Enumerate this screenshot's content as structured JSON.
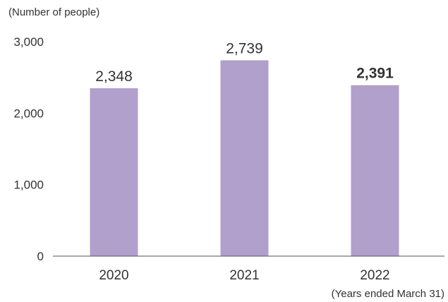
{
  "chart_data": {
    "type": "bar",
    "unit_label": "(Number of people)",
    "x_note": "(Years ended March 31)",
    "categories": [
      "2020",
      "2021",
      "2022"
    ],
    "values": [
      2348,
      2739,
      2391
    ],
    "value_labels": [
      "2,348",
      "2,739",
      "2,391"
    ],
    "highlight_index": 2,
    "yticks": [
      0,
      1000,
      2000,
      3000
    ],
    "ytick_labels": [
      "0",
      "1,000",
      "2,000",
      "3,000"
    ],
    "ylim": [
      0,
      3000
    ],
    "grid": false,
    "colors": {
      "bar": "#b19fcc",
      "axis": "#555555",
      "text": "#333333"
    }
  }
}
